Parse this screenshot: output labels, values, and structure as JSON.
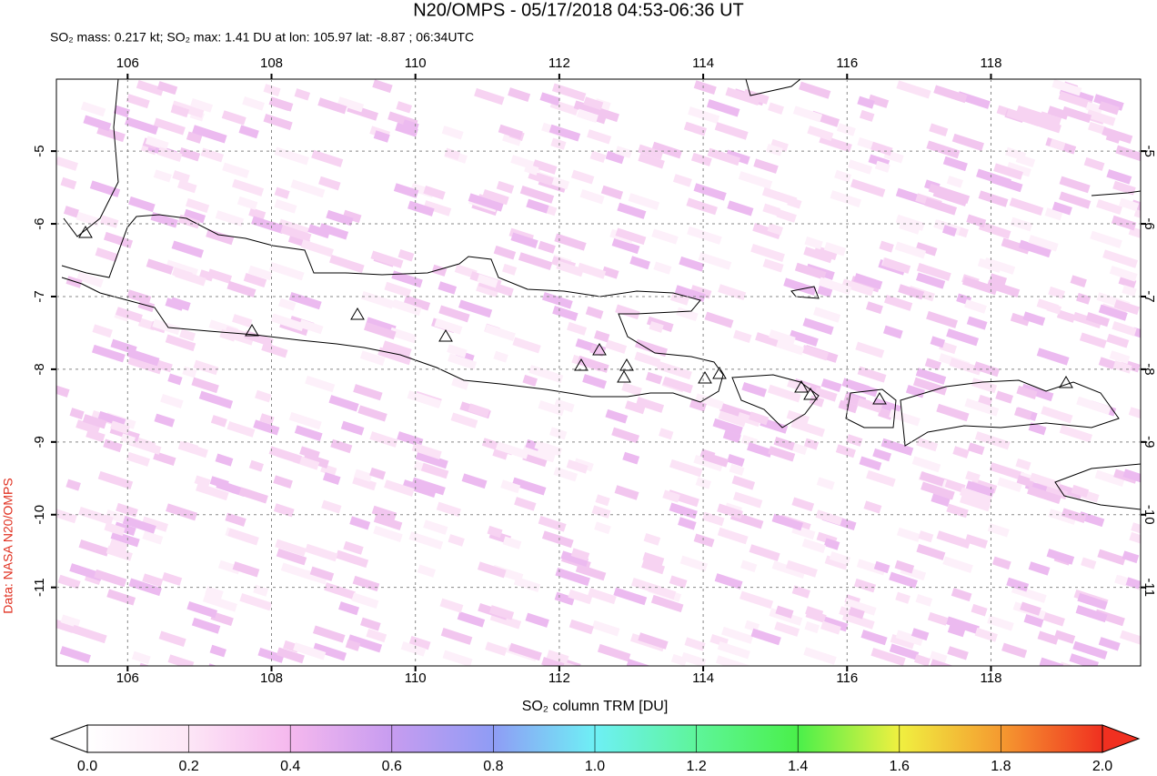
{
  "map": {
    "title": "N20/OMPS - 05/17/2018 04:53-06:36 UT",
    "subtitle": "SO₂ mass: 0.217 kt; SO₂ max: 1.41 DU at lon: 105.97 lat: -8.87 ; 06:34UTC",
    "credit": "Data: NASA N20/OMPS",
    "xlim": [
      105.01,
      120.08
    ],
    "ylim": [
      -12.08,
      -4.01
    ],
    "xticks": [
      106,
      108,
      110,
      112,
      114,
      116,
      118
    ],
    "yticks": [
      -5,
      -6,
      -7,
      -8,
      -9,
      -10,
      -11
    ],
    "grid": true,
    "colorbar": {
      "label": "SO₂ column TRM [DU]",
      "lim": [
        0,
        2
      ],
      "ticks": [
        {
          "value": 0,
          "label": "0.0"
        },
        {
          "value": 0.2,
          "label": "0.2"
        },
        {
          "value": 0.4,
          "label": "0.4"
        },
        {
          "value": 0.6,
          "label": "0.6"
        },
        {
          "value": 0.8,
          "label": "0.8"
        },
        {
          "value": 1,
          "label": "1.0"
        },
        {
          "value": 1.2,
          "label": "1.2"
        },
        {
          "value": 1.4,
          "label": "1.4"
        },
        {
          "value": 1.6,
          "label": "1.6"
        },
        {
          "value": 1.8,
          "label": "1.8"
        },
        {
          "value": 2,
          "label": "2.0"
        }
      ]
    }
  }
}
